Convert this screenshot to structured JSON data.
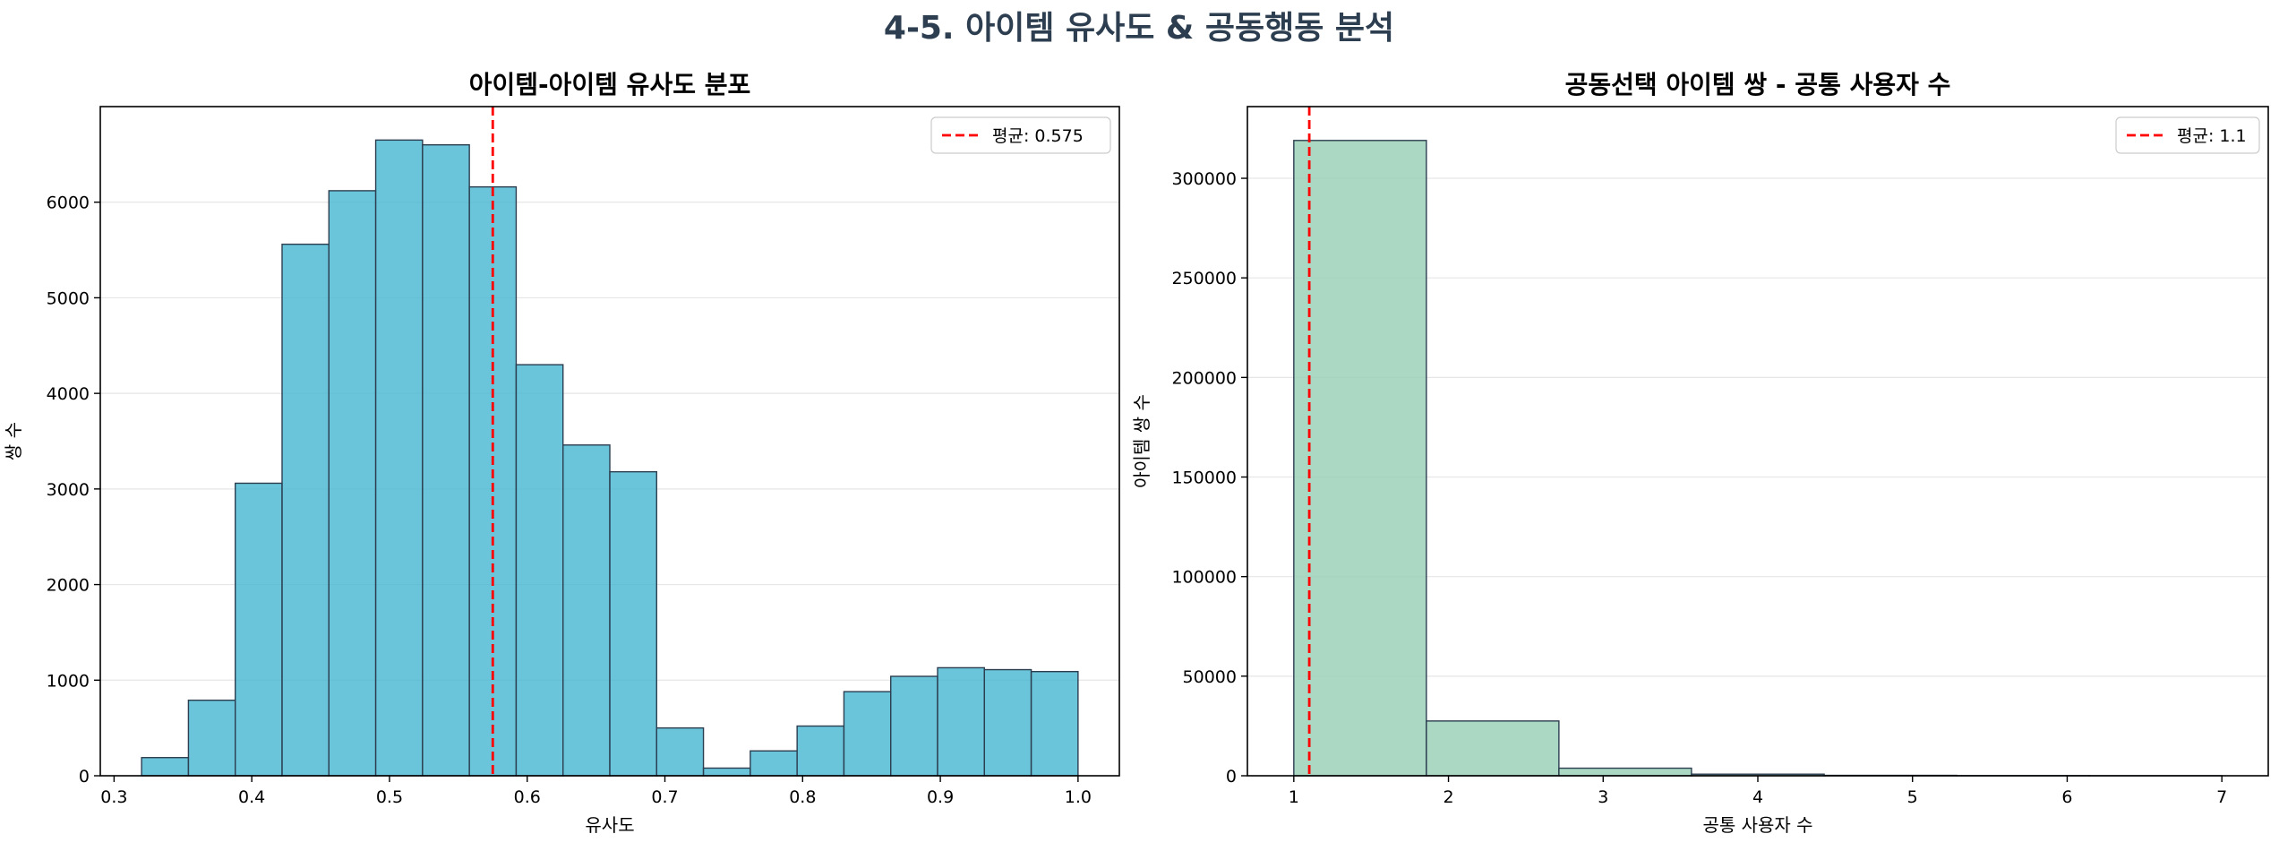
{
  "suptitle": "4-5. 아이템 유사도 & 공동행동 분석",
  "colors": {
    "title": "#2c3e50",
    "hist1_fill": "#45b7d1",
    "hist2_fill": "#96ceb4",
    "bar_edge": "#2c3e50",
    "mean_line": "#ff0000",
    "grid": "#e6e6e6"
  },
  "chart_data": [
    {
      "type": "bar",
      "title": "아이템-아이템 유사도 분포",
      "xlabel": "유사도",
      "ylabel": "쌍 수",
      "xlim": [
        0.29,
        1.03
      ],
      "ylim": [
        0,
        7000
      ],
      "xticks": [
        0.3,
        0.4,
        0.5,
        0.6,
        0.7,
        0.8,
        0.9,
        1.0
      ],
      "xtick_labels": [
        "0.3",
        "0.4",
        "0.5",
        "0.6",
        "0.7",
        "0.8",
        "0.9",
        "1.0"
      ],
      "yticks": [
        0,
        1000,
        2000,
        3000,
        4000,
        5000,
        6000
      ],
      "bin_edges": [
        0.32,
        0.354,
        0.388,
        0.422,
        0.456,
        0.49,
        0.524,
        0.558,
        0.592,
        0.626,
        0.66,
        0.694,
        0.728,
        0.762,
        0.796,
        0.83,
        0.864,
        0.898,
        0.932,
        0.966,
        1.0
      ],
      "values": [
        190,
        790,
        3060,
        5560,
        6120,
        6650,
        6600,
        6160,
        4300,
        3460,
        3180,
        500,
        80,
        260,
        520,
        880,
        1040,
        1130,
        1110,
        1090
      ],
      "mean": 0.575,
      "legend": "평균: 0.575",
      "legend_position": "upper-right",
      "grid": "y"
    },
    {
      "type": "bar",
      "title": "공동선택 아이템 쌍 - 공통 사용자 수",
      "xlabel": "공통 사용자 수",
      "ylabel": "아이템 쌍 수",
      "xlim": [
        0.7,
        7.3
      ],
      "ylim": [
        0,
        336000
      ],
      "xticks": [
        1,
        2,
        3,
        4,
        5,
        6,
        7
      ],
      "xtick_labels": [
        "1",
        "2",
        "3",
        "4",
        "5",
        "6",
        "7"
      ],
      "yticks": [
        0,
        50000,
        100000,
        150000,
        200000,
        250000,
        300000
      ],
      "bin_edges": [
        1,
        1.857,
        2.714,
        3.571,
        4.429,
        5.286,
        6.143,
        7
      ],
      "values": [
        319000,
        27500,
        3800,
        800,
        200,
        60,
        20
      ],
      "mean": 1.1,
      "legend": "평균: 1.1",
      "legend_position": "upper-right",
      "grid": "y"
    }
  ]
}
